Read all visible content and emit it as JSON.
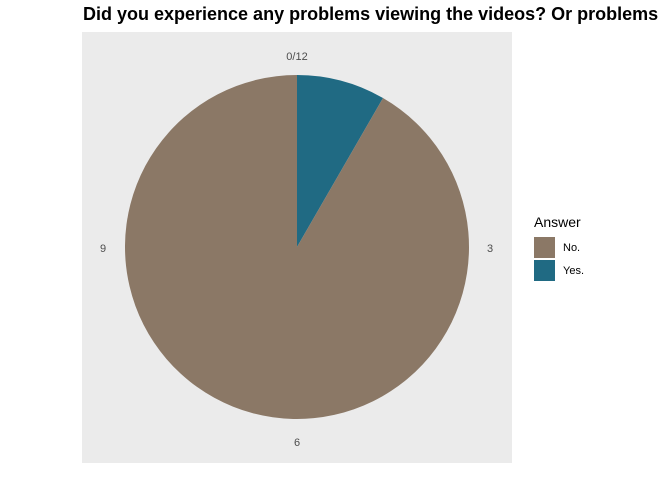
{
  "chart_data": {
    "type": "pie",
    "title": "Did you experience any problems viewing the videos? Or problems",
    "categories": [
      "No.",
      "Yes."
    ],
    "values": [
      11,
      1
    ],
    "total": 12,
    "colors": [
      "#8b7866",
      "#206a83"
    ],
    "tick_labels": [
      "0/12",
      "3",
      "6",
      "9"
    ],
    "legend": {
      "title": "Answer",
      "placement": "right",
      "entries": [
        "No.",
        "Yes."
      ]
    },
    "panel_background": "#ebebeb"
  }
}
